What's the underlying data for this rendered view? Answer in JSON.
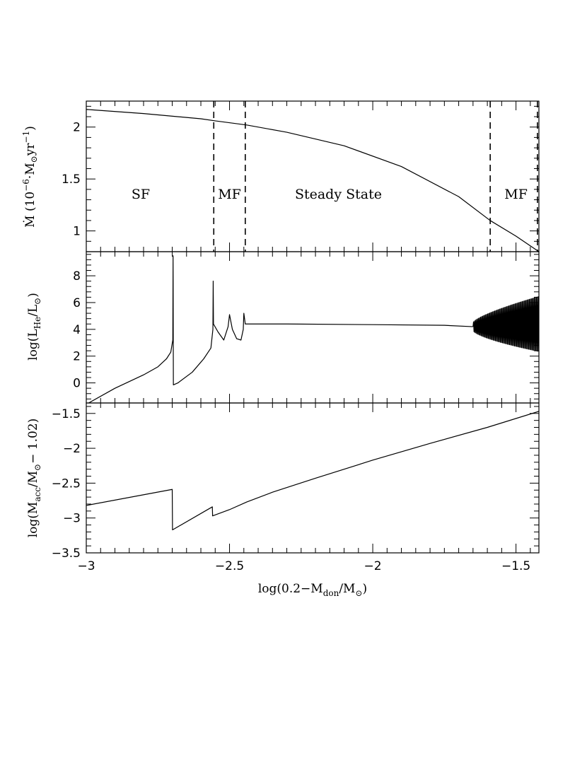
{
  "chart_data": [
    {
      "panel": "top",
      "type": "line",
      "ylabel": "Ṁ (10⁻⁶ M⊙ yr⁻¹)",
      "xlim": [
        -3,
        -1.42
      ],
      "ylim": [
        0.8,
        2.25
      ],
      "yticks": [
        1,
        1.5,
        2
      ],
      "ytick_labels": [
        "1",
        "1.5",
        "2"
      ],
      "series": [
        {
          "x": [
            -3.0,
            -2.8,
            -2.6,
            -2.55,
            -2.44,
            -2.3,
            -2.1,
            -1.9,
            -1.7,
            -1.59,
            -1.5,
            -1.42
          ],
          "y": [
            2.17,
            2.13,
            2.08,
            2.06,
            2.02,
            1.95,
            1.82,
            1.62,
            1.33,
            1.1,
            0.95,
            0.8
          ]
        }
      ],
      "vlines": [
        -2.555,
        -2.445,
        -1.59,
        -1.425
      ],
      "regions": [
        {
          "label": "SF",
          "x": -2.81,
          "y": 1.35
        },
        {
          "label": "MF",
          "x": -2.5,
          "y": 1.35
        },
        {
          "label": "Steady State",
          "x": -2.12,
          "y": 1.35
        },
        {
          "label": "MF",
          "x": -1.5,
          "y": 1.35
        }
      ]
    },
    {
      "panel": "middle",
      "type": "line",
      "ylabel": "log(L_He/L⊙)",
      "xlim": [
        -3,
        -1.42
      ],
      "ylim": [
        -1.5,
        9.8
      ],
      "yticks": [
        0,
        2,
        4,
        6,
        8
      ],
      "ytick_labels": [
        "0",
        "2",
        "4",
        "6",
        "8"
      ],
      "series": [
        {
          "x": [
            -3.0,
            -2.9,
            -2.8,
            -2.75,
            -2.72,
            -2.705,
            -2.698,
            -2.697,
            -2.696,
            -2.68,
            -2.63,
            -2.59,
            -2.565,
            -2.558,
            -2.557,
            -2.556,
            -2.54,
            -2.52,
            -2.505,
            -2.5,
            -2.49,
            -2.475,
            -2.46,
            -2.452,
            -2.45,
            -2.445,
            -2.44,
            -2.3,
            -2.0,
            -1.75,
            -1.65
          ],
          "y": [
            -1.6,
            -0.4,
            0.6,
            1.2,
            1.8,
            2.3,
            3.2,
            9.5,
            -0.15,
            0.0,
            0.8,
            1.8,
            2.6,
            4.0,
            7.6,
            4.4,
            3.8,
            3.2,
            4.2,
            5.1,
            4.0,
            3.3,
            3.2,
            4.0,
            5.2,
            4.4,
            4.4,
            4.4,
            4.35,
            4.3,
            4.2
          ]
        }
      ],
      "oscillation": {
        "x_start": -1.65,
        "x_end": -1.42,
        "center_start": 4.2,
        "center_end": 4.4,
        "amp_start": 0.3,
        "amp_end": 2.05
      }
    },
    {
      "panel": "bottom",
      "type": "line",
      "xlabel": "log(0.2−M_don/M⊙)",
      "ylabel": "log(M_acc/M⊙ − 1.02)",
      "xlim": [
        -3,
        -1.42
      ],
      "ylim": [
        -3.5,
        -1.35
      ],
      "xticks": [
        -3,
        -2.5,
        -2,
        -1.5
      ],
      "xtick_labels": [
        "−3",
        "−2.5",
        "−2",
        "−1.5"
      ],
      "yticks": [
        -3.5,
        -3,
        -2.5,
        -2,
        -1.5
      ],
      "ytick_labels": [
        "−3.5",
        "−3",
        "−2.5",
        "−2",
        "−1.5"
      ],
      "series": [
        {
          "x": [
            -3.0,
            -2.7,
            -2.699,
            -2.56,
            -2.559,
            -2.5,
            -2.44,
            -2.35,
            -2.2,
            -2.0,
            -1.8,
            -1.6,
            -1.42
          ],
          "y": [
            -2.82,
            -2.59,
            -3.17,
            -2.84,
            -2.97,
            -2.88,
            -2.77,
            -2.63,
            -2.43,
            -2.17,
            -1.93,
            -1.7,
            -1.47
          ]
        }
      ]
    }
  ]
}
